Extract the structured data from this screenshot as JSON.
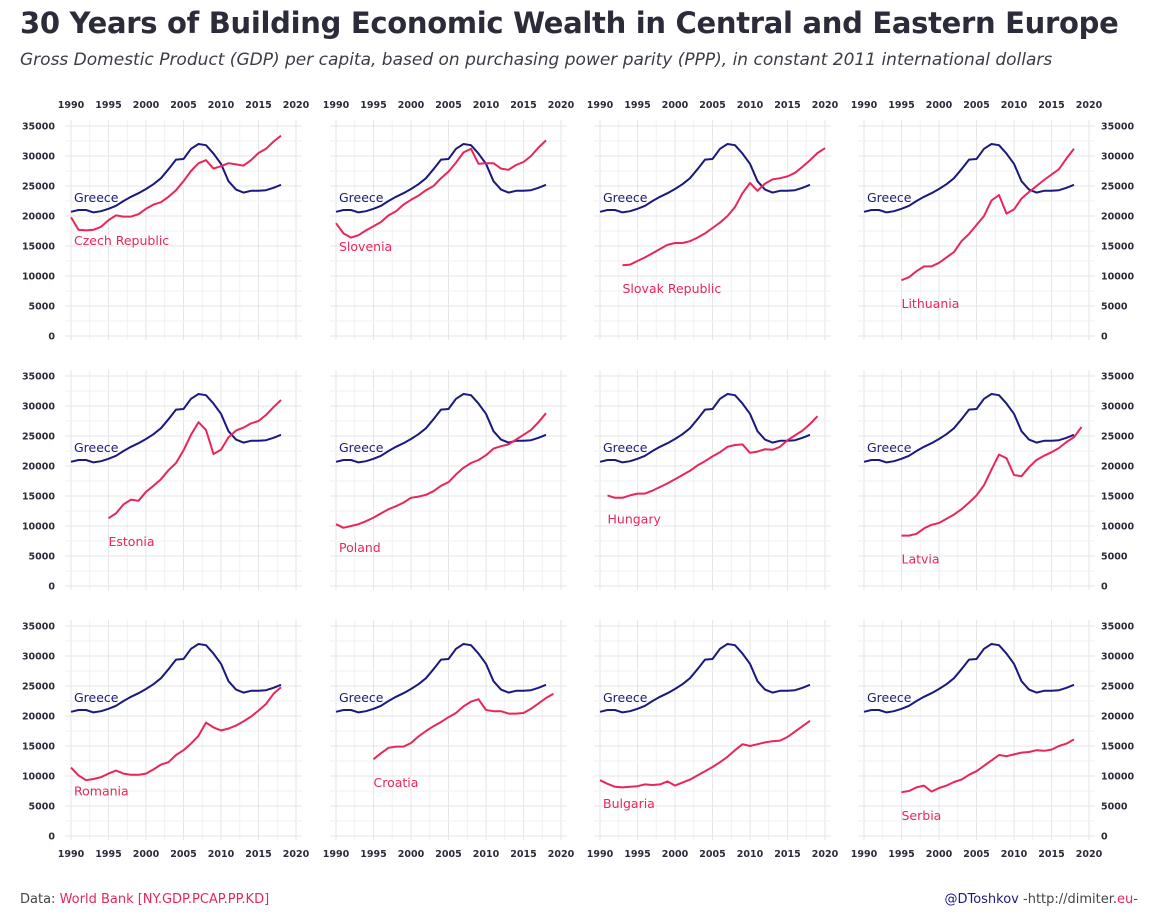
{
  "title": "30 Years of Building Economic Wealth in Central and Eastern Europe",
  "subtitle": "Gross Domestic Product (GDP) per capita, based on purchasing power parity (PPP), in constant 2011 international dollars",
  "footer": {
    "data_prefix": "Data: ",
    "data_source": "World Bank [NY.GDP.PCAP.PP.KD]",
    "handle": "@DToshkov",
    "url_prefix": " -http://dimiter.",
    "url_tld": "eu",
    "url_suffix": "-"
  },
  "colors": {
    "greece": "#1a1a7e",
    "country": "#e8265a",
    "grid": "#e6e6e6",
    "text": "#2b2b3a"
  },
  "chart_data": {
    "type": "line",
    "xlim": [
      1990,
      2020
    ],
    "ylim": [
      0,
      35000
    ],
    "x_ticks": [
      "1990",
      "1995",
      "2000",
      "2005",
      "2010",
      "2015",
      "2020"
    ],
    "y_ticks": [
      "0",
      "5000",
      "10000",
      "15000",
      "20000",
      "25000",
      "30000",
      "35000"
    ],
    "reference": {
      "name": "Greece",
      "start_year": 1990,
      "values": [
        20700,
        21000,
        21000,
        20600,
        20800,
        21200,
        21700,
        22500,
        23200,
        23800,
        24500,
        25300,
        26300,
        27800,
        29400,
        29500,
        31200,
        32000,
        31800,
        30400,
        28700,
        25800,
        24400,
        23900,
        24200,
        24200,
        24300,
        24700,
        25200
      ]
    },
    "panels": [
      {
        "name": "Czech Republic",
        "start_year": 1990,
        "values": [
          19800,
          17700,
          17600,
          17700,
          18200,
          19300,
          20100,
          19900,
          19900,
          20300,
          21200,
          21900,
          22300,
          23200,
          24300,
          25800,
          27500,
          28800,
          29300,
          27900,
          28300,
          28800,
          28600,
          28400,
          29300,
          30500,
          31200,
          32400,
          33400
        ]
      },
      {
        "name": "Slovenia",
        "start_year": 1990,
        "values": [
          18800,
          17100,
          16400,
          16800,
          17600,
          18300,
          19000,
          20100,
          20800,
          21900,
          22700,
          23400,
          24300,
          25000,
          26300,
          27400,
          28900,
          30600,
          31200,
          28700,
          28800,
          28800,
          27900,
          27700,
          28500,
          29000,
          30000,
          31400,
          32600
        ]
      },
      {
        "name": "Slovak Republic",
        "start_year": 1993,
        "values": [
          11800,
          11900,
          12500,
          13100,
          13800,
          14500,
          15200,
          15500,
          15500,
          15800,
          16400,
          17100,
          18000,
          18900,
          20000,
          21500,
          23800,
          25500,
          24200,
          25400,
          26100,
          26300,
          26600,
          27200,
          28200,
          29300,
          30500,
          31300
        ]
      },
      {
        "name": "Lithuania",
        "start_year": 1995,
        "values": [
          9300,
          9800,
          10800,
          11600,
          11600,
          12200,
          13100,
          14000,
          15800,
          17000,
          18500,
          20000,
          22600,
          23500,
          20400,
          21100,
          22900,
          24000,
          25000,
          26000,
          26900,
          27800,
          29600,
          31200
        ]
      },
      {
        "name": "Estonia",
        "start_year": 1995,
        "values": [
          11300,
          12100,
          13600,
          14400,
          14200,
          15700,
          16700,
          17800,
          19300,
          20500,
          22600,
          25200,
          27300,
          26000,
          22000,
          22700,
          24800,
          25900,
          26400,
          27100,
          27500,
          28500,
          29800,
          31000
        ]
      },
      {
        "name": "Poland",
        "start_year": 1990,
        "values": [
          10300,
          9700,
          10000,
          10300,
          10800,
          11400,
          12100,
          12800,
          13300,
          13900,
          14700,
          14900,
          15200,
          15800,
          16700,
          17300,
          18600,
          19700,
          20500,
          21000,
          21800,
          22900,
          23300,
          23600,
          24400,
          25200,
          26000,
          27300,
          28800
        ]
      },
      {
        "name": "Hungary",
        "start_year": 1991,
        "values": [
          15100,
          14700,
          14700,
          15100,
          15400,
          15400,
          15900,
          16500,
          17100,
          17800,
          18500,
          19200,
          20100,
          20800,
          21600,
          22300,
          23200,
          23500,
          23600,
          22200,
          22400,
          22800,
          22700,
          23200,
          24300,
          25100,
          25900,
          27000,
          28300
        ]
      },
      {
        "name": "Latvia",
        "start_year": 1995,
        "values": [
          8400,
          8400,
          8700,
          9600,
          10200,
          10500,
          11200,
          11900,
          12800,
          13900,
          15100,
          16800,
          19400,
          21900,
          21300,
          18500,
          18300,
          19800,
          21000,
          21700,
          22300,
          23000,
          24000,
          24800,
          26500
        ]
      },
      {
        "name": "Romania",
        "start_year": 1990,
        "values": [
          11400,
          10100,
          9300,
          9500,
          9800,
          10400,
          10900,
          10400,
          10200,
          10200,
          10400,
          11100,
          11900,
          12300,
          13500,
          14300,
          15400,
          16700,
          18900,
          18100,
          17600,
          17900,
          18400,
          19100,
          19900,
          20900,
          22000,
          23700,
          24800
        ]
      },
      {
        "name": "Croatia",
        "start_year": 1995,
        "values": [
          12800,
          13800,
          14700,
          14900,
          14900,
          15500,
          16600,
          17500,
          18300,
          19000,
          19800,
          20500,
          21600,
          22400,
          22800,
          21000,
          20800,
          20800,
          20400,
          20400,
          20500,
          21200,
          22100,
          23000,
          23700
        ]
      },
      {
        "name": "Bulgaria",
        "start_year": 1990,
        "values": [
          9300,
          8700,
          8200,
          8100,
          8200,
          8300,
          8600,
          8500,
          8600,
          9100,
          8400,
          8900,
          9400,
          10100,
          10800,
          11500,
          12300,
          13200,
          14300,
          15300,
          15000,
          15300,
          15600,
          15800,
          15900,
          16500,
          17400,
          18300,
          19200
        ]
      },
      {
        "name": "Serbia",
        "start_year": 1995,
        "values": [
          7300,
          7500,
          8100,
          8400,
          7400,
          8000,
          8400,
          9000,
          9400,
          10200,
          10800,
          11700,
          12600,
          13500,
          13300,
          13600,
          13900,
          14000,
          14300,
          14200,
          14400,
          15000,
          15400,
          16100
        ]
      }
    ]
  }
}
